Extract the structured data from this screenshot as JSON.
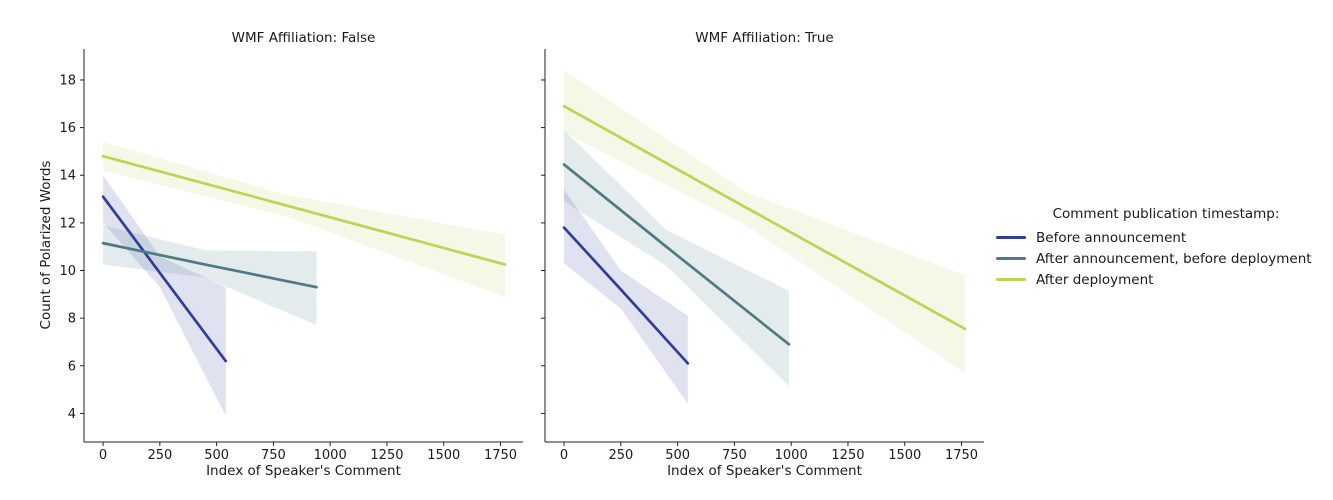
{
  "chart_data": {
    "type": "line",
    "xlabel": "Index of Speaker's Comment",
    "ylabel": "Count of Polarized Words",
    "x_ticks": [
      0,
      250,
      500,
      750,
      1000,
      1250,
      1500,
      1750
    ],
    "y_ticks": [
      4,
      6,
      8,
      10,
      12,
      14,
      16,
      18
    ],
    "xlim": [
      -84,
      1849
    ],
    "ylim": [
      2.8,
      19.3
    ],
    "grid": false,
    "legend": {
      "title": "Comment publication timestamp:",
      "position": "right-outside",
      "entries": [
        {
          "label": "Before announcement",
          "color": "#2f3e9a"
        },
        {
          "label": "After announcement, before deployment",
          "color": "#4d7a85"
        },
        {
          "label": "After deployment",
          "color": "#bed355"
        }
      ]
    },
    "facets": [
      {
        "title": "WMF Affiliation: False",
        "series": [
          {
            "name": "Before announcement",
            "color": "#2f3e9a",
            "x": [
              0,
              250,
              540
            ],
            "y": [
              13.1,
              9.9,
              6.2
            ],
            "ci_lower": [
              12.0,
              9.3,
              3.9
            ],
            "ci_upper": [
              14.0,
              10.6,
              9.3
            ]
          },
          {
            "name": "After announcement, before deployment",
            "color": "#4d7a85",
            "x": [
              0,
              450,
              940
            ],
            "y": [
              11.15,
              10.25,
              9.3
            ],
            "ci_lower": [
              10.25,
              9.7,
              7.7
            ],
            "ci_upper": [
              11.9,
              10.85,
              10.8
            ]
          },
          {
            "name": "After deployment",
            "color": "#bed355",
            "x": [
              0,
              800,
              1770
            ],
            "y": [
              14.8,
              12.75,
              10.25
            ],
            "ci_lower": [
              14.2,
              12.3,
              8.9
            ],
            "ci_upper": [
              15.4,
              13.2,
              11.5
            ]
          }
        ]
      },
      {
        "title": "WMF Affiliation: True",
        "series": [
          {
            "name": "Before announcement",
            "color": "#2f3e9a",
            "x": [
              0,
              250,
              545
            ],
            "y": [
              11.8,
              9.2,
              6.1
            ],
            "ci_lower": [
              10.3,
              8.4,
              4.4
            ],
            "ci_upper": [
              13.4,
              10.0,
              8.1
            ]
          },
          {
            "name": "After announcement, before deployment",
            "color": "#4d7a85",
            "x": [
              0,
              450,
              990
            ],
            "y": [
              14.45,
              11.0,
              6.9
            ],
            "ci_lower": [
              12.9,
              10.2,
              5.15
            ],
            "ci_upper": [
              15.9,
              11.7,
              9.15
            ]
          },
          {
            "name": "After deployment",
            "color": "#bed355",
            "x": [
              0,
              800,
              1765
            ],
            "y": [
              16.9,
              12.65,
              7.55
            ],
            "ci_lower": [
              15.8,
              11.9,
              5.7
            ],
            "ci_upper": [
              18.4,
              13.3,
              9.8
            ]
          }
        ]
      }
    ]
  }
}
